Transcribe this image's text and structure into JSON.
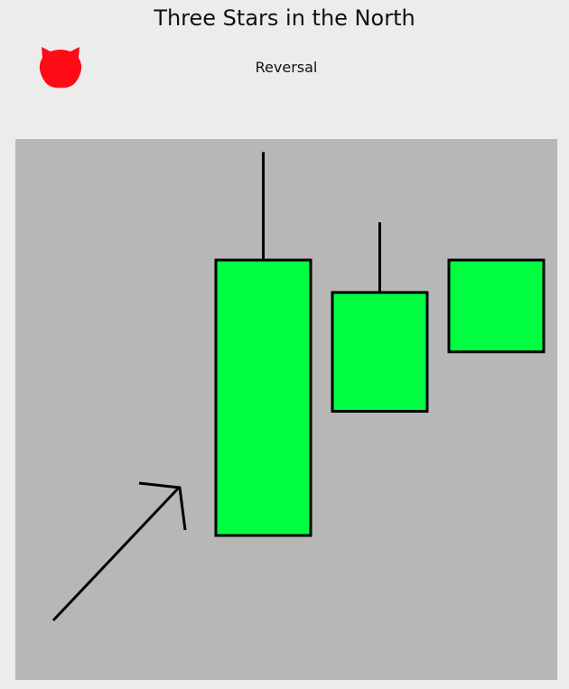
{
  "header": {
    "title": "Three Stars in the North",
    "subtitle": "Reversal",
    "icon": "bear-icon",
    "icon_color": "#ff0a17"
  },
  "chart_data": {
    "type": "candlestick",
    "title": "Three Stars in the North",
    "subtitle": "Reversal",
    "xlabel": "",
    "ylabel": "",
    "grid": false,
    "legend": "none",
    "ylim": [
      0,
      100
    ],
    "candles": [
      {
        "open": 27,
        "close": 78,
        "high": 98,
        "low": 27,
        "color": "#00ff40"
      },
      {
        "open": 50,
        "close": 72,
        "high": 85,
        "low": 50,
        "color": "#00ff40"
      },
      {
        "open": 61,
        "close": 78,
        "high": 78,
        "low": 61,
        "color": "#00ff40"
      }
    ],
    "annotations": [
      {
        "type": "arrow",
        "direction": "up-right",
        "color": "#000000"
      }
    ],
    "background_color": "#b7b7b7"
  }
}
